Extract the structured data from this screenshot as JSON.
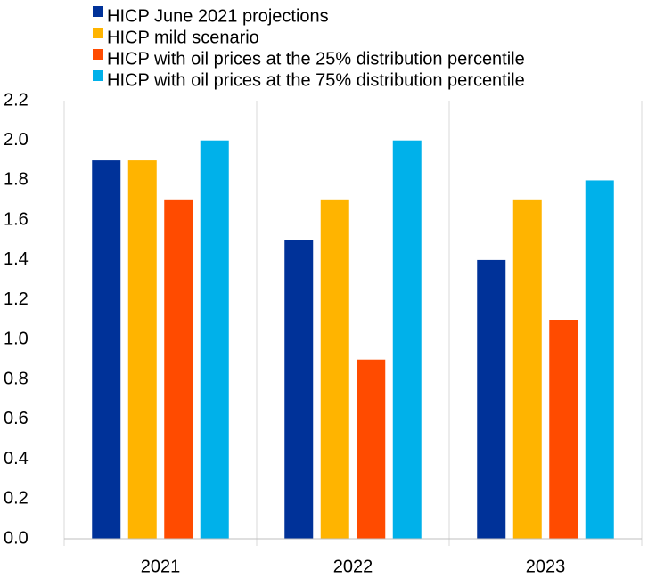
{
  "chart_data": {
    "type": "bar",
    "title": "",
    "xlabel": "",
    "ylabel": "",
    "categories": [
      "2021",
      "2022",
      "2023"
    ],
    "ylim": [
      0,
      2.2
    ],
    "yticks": [
      "0.0",
      "0.2",
      "0.4",
      "0.6",
      "0.8",
      "1.0",
      "1.2",
      "1.4",
      "1.6",
      "1.8",
      "2.0",
      "2.2"
    ],
    "grid": "vertical lines between categories",
    "legend_position": "top",
    "series": [
      {
        "name": "HICP June 2021 projections",
        "color": "#003299",
        "values": [
          1.9,
          1.5,
          1.4
        ]
      },
      {
        "name": "HICP mild scenario",
        "color": "#FFB400",
        "values": [
          1.9,
          1.7,
          1.7
        ]
      },
      {
        "name": "HICP with oil prices at the 25% distribution percentile",
        "color": "#FF4B00",
        "values": [
          1.7,
          0.9,
          1.1
        ]
      },
      {
        "name": "HICP with oil prices at the 75% distribution percentile",
        "color": "#00B1EA",
        "values": [
          2.0,
          2.0,
          1.8
        ]
      }
    ]
  }
}
